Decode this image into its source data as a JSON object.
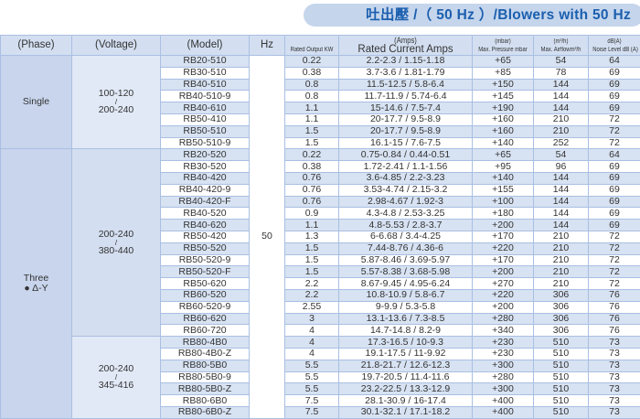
{
  "title": "吐出壓 /（ 50 Hz ）/Blowers with 50 Hz",
  "headers": {
    "phase": "(Phase)",
    "voltage": "(Voltage)",
    "model": "(Model)",
    "hz": "Hz",
    "kw": "Rated Output KW",
    "amps_unit": "(Amps)",
    "amps": "Rated Current Amps",
    "pressure_unit": "(mbar)",
    "pressure": "Max. Pressure mbar",
    "airflow_unit": "(m³/h)",
    "airflow": "Max. Airflowm³/h",
    "noise_unit": "dB(A)",
    "noise": "Noise Level dB (A)"
  },
  "hz_value": "50",
  "groups": [
    {
      "phase": "Single",
      "phase_sub": "",
      "voltages": [
        {
          "v1": "100-120",
          "sep": "/",
          "v2": "200-240",
          "rows": [
            [
              "RB20-510",
              "0.22",
              "2.2-2.3 / 1.15-1.18",
              "+65",
              "54",
              "64"
            ],
            [
              "RB30-510",
              "0.38",
              "3.7-3.6 / 1.81-1.79",
              "+85",
              "78",
              "69"
            ],
            [
              "RB40-510",
              "0.8",
              "11.5-12.5 / 5.8-6.4",
              "+150",
              "144",
              "69"
            ],
            [
              "RB40-510-9",
              "0.8",
              "11.7-11.9 / 5.74-6.4",
              "+145",
              "144",
              "69"
            ],
            [
              "RB40-610",
              "1.1",
              "15-14.6 / 7.5-7.4",
              "+190",
              "144",
              "69"
            ],
            [
              "RB50-410",
              "1.1",
              "20-17.7 / 9.5-8.9",
              "+160",
              "210",
              "72"
            ],
            [
              "RB50-510",
              "1.5",
              "20-17.7 / 9.5-8.9",
              "+160",
              "210",
              "72"
            ],
            [
              "RB50-510-9",
              "1.5",
              "16.1-15 / 7.6-7.5",
              "+140",
              "252",
              "72"
            ]
          ]
        }
      ]
    },
    {
      "phase": "Three",
      "phase_sub": "● Δ-Y",
      "voltages": [
        {
          "v1": "200-240",
          "sep": "/",
          "v2": "380-440",
          "rows": [
            [
              "RB20-520",
              "0.22",
              "0.75-0.84 / 0.44-0.51",
              "+65",
              "54",
              "64"
            ],
            [
              "RB30-520",
              "0.38",
              "1.72-2.41 / 1.1-1.56",
              "+95",
              "96",
              "69"
            ],
            [
              "RB40-420",
              "0.76",
              "3.6-4.85 / 2.2-3.23",
              "+140",
              "144",
              "69"
            ],
            [
              "RB40-420-9",
              "0.76",
              "3.53-4.74 / 2.15-3.2",
              "+155",
              "144",
              "69"
            ],
            [
              "RB40-420-F",
              "0.76",
              "2.98-4.67 / 1.92-3",
              "+100",
              "144",
              "69"
            ],
            [
              "RB40-520",
              "0.9",
              "4.3-4.8 / 2.53-3.25",
              "+180",
              "144",
              "69"
            ],
            [
              "RB40-620",
              "1.1",
              "4.8-5.53 / 2.8-3.7",
              "+200",
              "144",
              "69"
            ],
            [
              "RB50-420",
              "1.3",
              "6-6.68 / 3.4-4.25",
              "+170",
              "210",
              "72"
            ],
            [
              "RB50-520",
              "1.5",
              "7.44-8.76 / 4.36-6",
              "+220",
              "210",
              "72"
            ],
            [
              "RB50-520-9",
              "1.5",
              "5.87-8.46 / 3.69-5.97",
              "+170",
              "210",
              "72"
            ],
            [
              "RB50-520-F",
              "1.5",
              "5.57-8.38 / 3.68-5.98",
              "+200",
              "210",
              "72"
            ],
            [
              "RB50-620",
              "2.2",
              "8.67-9.45 / 4.95-6.24",
              "+270",
              "210",
              "72"
            ],
            [
              "RB60-520",
              "2.2",
              "10.8-10.9 / 5.8-6.7",
              "+220",
              "306",
              "76"
            ],
            [
              "RB60-520-9",
              "2.55",
              "9-9.9 / 5.3-5.8",
              "+200",
              "306",
              "76"
            ],
            [
              "RB60-620",
              "3",
              "13.1-13.6 / 7.3-8.5",
              "+280",
              "306",
              "76"
            ],
            [
              "RB60-720",
              "4",
              "14.7-14.8 / 8.2-9",
              "+340",
              "306",
              "76"
            ]
          ]
        },
        {
          "v1": "200-240",
          "sep": "/",
          "v2": "345-416",
          "rows": [
            [
              "RB80-4B0",
              "4",
              "17.3-16.5 / 10-9.3",
              "+230",
              "510",
              "73"
            ],
            [
              "RB80-4B0-Z",
              "4",
              "19.1-17.5 / 11-9.92",
              "+230",
              "510",
              "73"
            ],
            [
              "RB80-5B0",
              "5.5",
              "21.8-21.7 / 12.6-12.3",
              "+300",
              "510",
              "73"
            ],
            [
              "RB80-5B0-9",
              "5.5",
              "19.7-20.5 / 11.4-11.6",
              "+280",
              "510",
              "73"
            ],
            [
              "RB80-5B0-Z",
              "5.5",
              "23.2-22.5 / 13.3-12.9",
              "+300",
              "510",
              "73"
            ],
            [
              "RB80-6B0",
              "7.5",
              "28.1-30.9 / 16-17.4",
              "+400",
              "510",
              "73"
            ],
            [
              "RB80-6B0-Z",
              "7.5",
              "30.1-32.1 / 17.1-18.2",
              "+400",
              "510",
              "73"
            ]
          ]
        }
      ]
    }
  ]
}
